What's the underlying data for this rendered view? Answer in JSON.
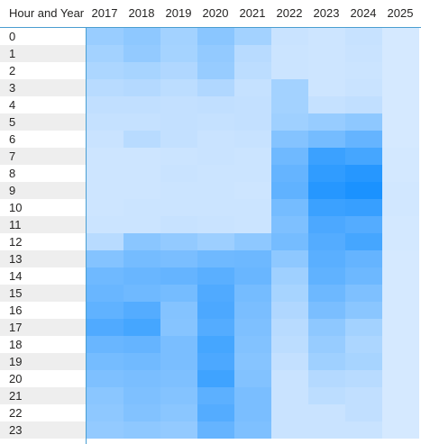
{
  "chart_data": {
    "type": "heatmap",
    "corner_label": "Hour and Year",
    "years": [
      "2017",
      "2018",
      "2019",
      "2020",
      "2021",
      "2022",
      "2023",
      "2024",
      "2025"
    ],
    "hours": [
      "0",
      "1",
      "2",
      "3",
      "4",
      "5",
      "6",
      "7",
      "8",
      "9",
      "10",
      "11",
      "12",
      "13",
      "14",
      "15",
      "16",
      "17",
      "18",
      "19",
      "20",
      "21",
      "22",
      "23"
    ],
    "values": [
      [
        35,
        40,
        30,
        42,
        30,
        12,
        10,
        13,
        6
      ],
      [
        30,
        38,
        29,
        38,
        20,
        11,
        10,
        12,
        6
      ],
      [
        26,
        28,
        24,
        36,
        18,
        11,
        10,
        11,
        6
      ],
      [
        20,
        22,
        18,
        24,
        14,
        30,
        10,
        12,
        6
      ],
      [
        16,
        16,
        15,
        16,
        15,
        30,
        14,
        16,
        6
      ],
      [
        14,
        14,
        15,
        14,
        15,
        32,
        36,
        40,
        6
      ],
      [
        12,
        20,
        15,
        12,
        13,
        45,
        52,
        60,
        6
      ],
      [
        10,
        10,
        11,
        12,
        11,
        55,
        80,
        75,
        7
      ],
      [
        10,
        10,
        12,
        11,
        11,
        60,
        85,
        90,
        7
      ],
      [
        10,
        10,
        11,
        11,
        10,
        62,
        90,
        95,
        8
      ],
      [
        10,
        11,
        11,
        11,
        11,
        52,
        80,
        82,
        8
      ],
      [
        11,
        11,
        13,
        12,
        11,
        48,
        72,
        68,
        7
      ],
      [
        20,
        42,
        38,
        33,
        40,
        52,
        68,
        75,
        7
      ],
      [
        45,
        52,
        50,
        55,
        56,
        40,
        65,
        60,
        6
      ],
      [
        55,
        58,
        60,
        65,
        58,
        32,
        62,
        56,
        6
      ],
      [
        58,
        55,
        52,
        70,
        52,
        28,
        56,
        48,
        6
      ],
      [
        62,
        68,
        45,
        72,
        50,
        24,
        50,
        42,
        6
      ],
      [
        70,
        75,
        44,
        68,
        48,
        20,
        40,
        30,
        6
      ],
      [
        58,
        60,
        50,
        75,
        46,
        18,
        36,
        26,
        6
      ],
      [
        52,
        54,
        50,
        72,
        44,
        15,
        32,
        28,
        6
      ],
      [
        48,
        50,
        48,
        78,
        46,
        12,
        22,
        20,
        6
      ],
      [
        42,
        48,
        45,
        64,
        50,
        12,
        18,
        16,
        6
      ],
      [
        40,
        46,
        42,
        68,
        50,
        12,
        12,
        16,
        6
      ],
      [
        38,
        40,
        38,
        60,
        48,
        12,
        12,
        12,
        6
      ]
    ],
    "value_range": [
      0,
      100
    ],
    "color_low": "#e2efff",
    "color_high": "#118dff",
    "alt_row_color": "#eeeeee",
    "grid_line_color": "#4a9ed1"
  }
}
